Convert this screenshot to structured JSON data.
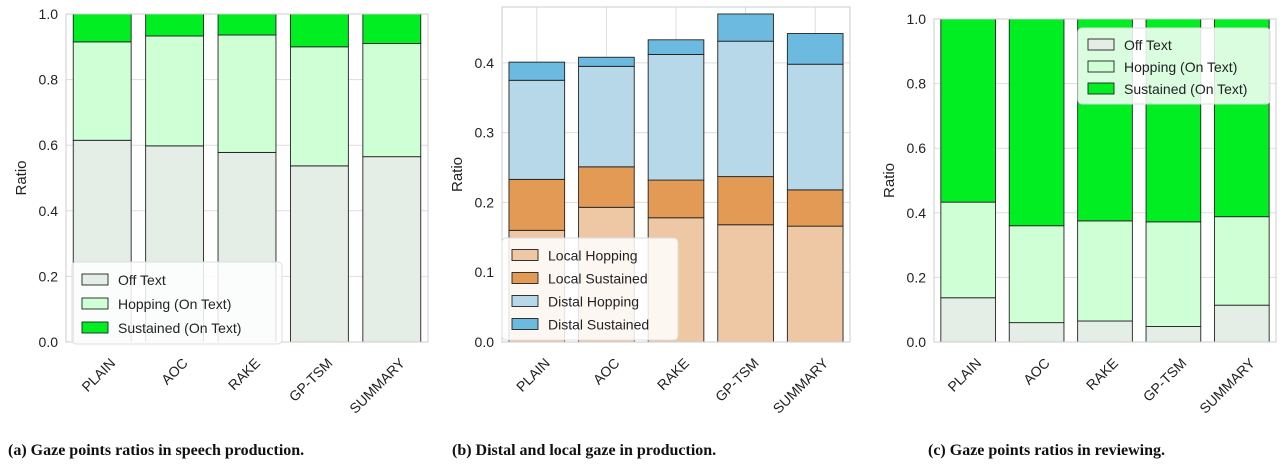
{
  "chart_data": [
    {
      "type": "bar",
      "stacked": true,
      "categories": [
        "PLAIN",
        "AOC",
        "RAKE",
        "GP-TSM",
        "SUMMARY"
      ],
      "series": [
        {
          "name": "Off Text",
          "values": [
            0.615,
            0.598,
            0.578,
            0.537,
            0.565
          ],
          "color": "#e5ede7"
        },
        {
          "name": "Hopping (On Text)",
          "values": [
            0.3,
            0.335,
            0.358,
            0.363,
            0.345
          ],
          "color": "#cfffd5"
        },
        {
          "name": "Sustained (On Text)",
          "values": [
            0.085,
            0.067,
            0.064,
            0.1,
            0.09
          ],
          "color": "#00ee22"
        }
      ],
      "ylabel": "Ratio",
      "ylim": [
        0,
        1.0
      ],
      "yticks": [
        "0.0",
        "0.2",
        "0.4",
        "0.6",
        "0.8",
        "1.0"
      ],
      "grid": true,
      "legend_position": "bottom-left",
      "caption": "(a) Gaze points ratios in speech production."
    },
    {
      "type": "bar",
      "stacked": true,
      "categories": [
        "PLAIN",
        "AOC",
        "RAKE",
        "GP-TSM",
        "SUMMARY"
      ],
      "series": [
        {
          "name": "Local Hopping",
          "values": [
            0.16,
            0.193,
            0.178,
            0.168,
            0.166
          ],
          "color": "#eec8a4"
        },
        {
          "name": "Local Sustained",
          "values": [
            0.073,
            0.058,
            0.054,
            0.069,
            0.052
          ],
          "color": "#e39a55"
        },
        {
          "name": "Distal Hopping",
          "values": [
            0.142,
            0.144,
            0.18,
            0.194,
            0.18
          ],
          "color": "#b7d8e8"
        },
        {
          "name": "Distal Sustained",
          "values": [
            0.026,
            0.013,
            0.021,
            0.039,
            0.044
          ],
          "color": "#6cbadf"
        }
      ],
      "ylabel": "Ratio",
      "ylim": [
        0,
        0.48
      ],
      "yticks": [
        "0.0",
        "0.1",
        "0.2",
        "0.3",
        "0.4"
      ],
      "grid": true,
      "legend_position": "bottom-left",
      "caption": "(b) Distal and local gaze in production."
    },
    {
      "type": "bar",
      "stacked": true,
      "categories": [
        "PLAIN",
        "AOC",
        "RAKE",
        "GP-TSM",
        "SUMMARY"
      ],
      "series": [
        {
          "name": "Off Text",
          "values": [
            0.137,
            0.06,
            0.065,
            0.048,
            0.114
          ],
          "color": "#e5ede7"
        },
        {
          "name": "Hopping (On Text)",
          "values": [
            0.296,
            0.3,
            0.31,
            0.324,
            0.274
          ],
          "color": "#cfffd5"
        },
        {
          "name": "Sustained (On Text)",
          "values": [
            0.567,
            0.64,
            0.625,
            0.628,
            0.612
          ],
          "color": "#00ee22"
        }
      ],
      "ylabel": "Ratio",
      "ylim": [
        0,
        1.0
      ],
      "yticks": [
        "0.0",
        "0.2",
        "0.4",
        "0.6",
        "0.8",
        "1.0"
      ],
      "grid": true,
      "legend_position": "top-right",
      "caption": "(c) Gaze points ratios in reviewing."
    }
  ]
}
